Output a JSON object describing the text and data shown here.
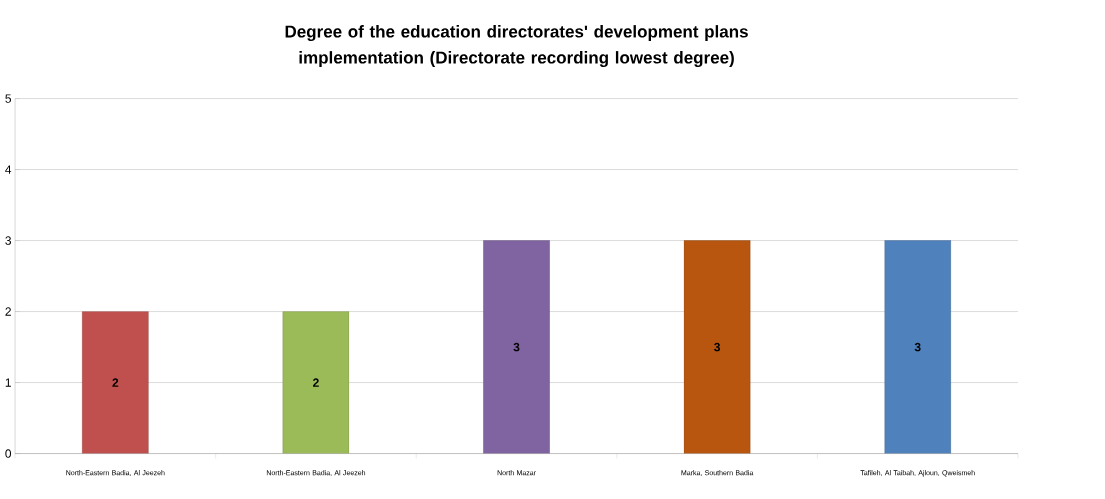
{
  "chart_data": {
    "type": "bar",
    "title": "Degree of the education directorates' development plans implementation (Directorate recording lowest degree)",
    "categories": [
      "North-Eastern Badia, Al Jeezeh",
      "North-Eastern Badia, Al Jeezeh",
      "North Mazar",
      "Marka, Southern Badia",
      "Tafileh, Al Taibah,  Ajloun, Qweismeh"
    ],
    "values": [
      2,
      2,
      3,
      3,
      3
    ],
    "colors": [
      "#c0504d",
      "#9bbb59",
      "#8064a2",
      "#b8560f",
      "#4f81bd"
    ],
    "ylim": [
      0,
      5
    ],
    "yticks": [
      0,
      1,
      2,
      3,
      4,
      5
    ],
    "grid": "y",
    "data_labels": true
  }
}
